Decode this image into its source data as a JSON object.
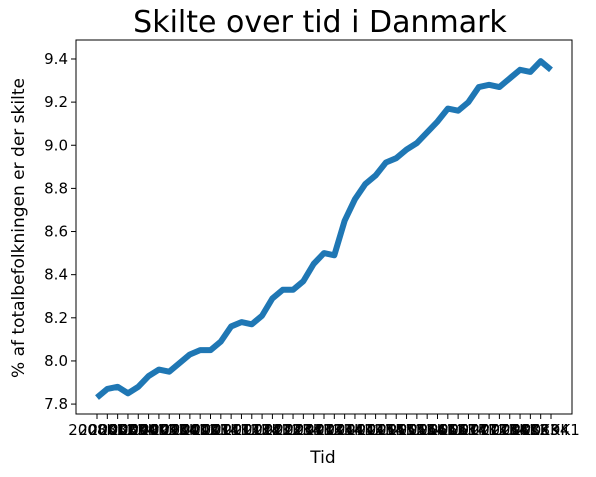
{
  "chart_data": {
    "type": "line",
    "title": "Skilte over tid i Danmark",
    "xlabel": "Tid",
    "ylabel": "% af totalbefolkningen er der skilte",
    "categories": [
      "2008K1",
      "2008K2",
      "2008K3",
      "2008K4",
      "2009K1",
      "2009K2",
      "2009K3",
      "2009K4",
      "2010K1",
      "2010K2",
      "2010K3",
      "2010K4",
      "2011K1",
      "2011K2",
      "2011K3",
      "2011K4",
      "2012K1",
      "2012K2",
      "2012K3",
      "2012K4",
      "2013K1",
      "2013K2",
      "2013K3",
      "2013K4",
      "2014K1",
      "2014K2",
      "2014K3",
      "2014K4",
      "2015K1",
      "2015K2",
      "2015K3",
      "2015K4",
      "2016K1",
      "2016K2",
      "2016K3",
      "2016K4",
      "2017K1",
      "2017K2",
      "2017K3",
      "2017K4",
      "2018K1",
      "2018K2",
      "2018K3",
      "2018K4",
      "2019K1"
    ],
    "series": [
      {
        "name": "Skilte",
        "color": "#1f77b4",
        "values": [
          7.83,
          7.87,
          7.88,
          7.85,
          7.88,
          7.93,
          7.96,
          7.95,
          7.99,
          8.03,
          8.05,
          8.05,
          8.09,
          8.16,
          8.18,
          8.17,
          8.21,
          8.29,
          8.33,
          8.33,
          8.37,
          8.45,
          8.5,
          8.49,
          8.65,
          8.75,
          8.82,
          8.86,
          8.92,
          8.94,
          8.98,
          9.01,
          9.06,
          9.11,
          9.17,
          9.16,
          9.2,
          9.27,
          9.28,
          9.27,
          9.31,
          9.35,
          9.34,
          9.39,
          9.35
        ]
      }
    ],
    "ylim": [
      7.754,
      9.488
    ],
    "yticks": [
      {
        "value": 7.8,
        "label": "7.8"
      },
      {
        "value": 8.0,
        "label": "8.0"
      },
      {
        "value": 8.2,
        "label": "8.2"
      },
      {
        "value": 8.4,
        "label": "8.4"
      },
      {
        "value": 8.6,
        "label": "8.6"
      },
      {
        "value": 8.8,
        "label": "8.8"
      },
      {
        "value": 9.0,
        "label": "9.0"
      },
      {
        "value": 9.2,
        "label": "9.2"
      },
      {
        "value": 9.4,
        "label": "9.4"
      }
    ]
  }
}
